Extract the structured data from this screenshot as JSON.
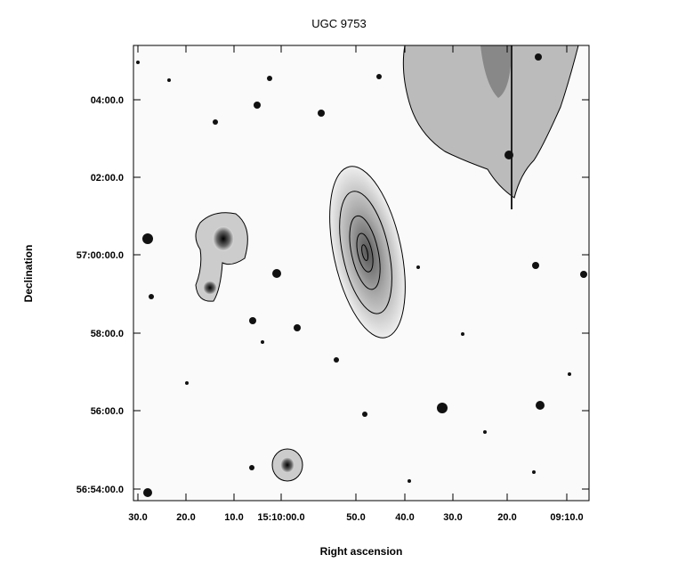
{
  "title": "UGC 9753",
  "x_axis": {
    "label": "Right ascension",
    "ticks": [
      "30.0",
      "20.0",
      "10.0",
      "15:10:00.0",
      "50.0",
      "40.0",
      "30.0",
      "20.0",
      "09:10.0"
    ]
  },
  "y_axis": {
    "label": "Declination",
    "ticks": [
      "04:00.0",
      "02:00.0",
      "57:00:00.0",
      "58:00.0",
      "56:00.0",
      "56:54:00.0"
    ]
  }
}
